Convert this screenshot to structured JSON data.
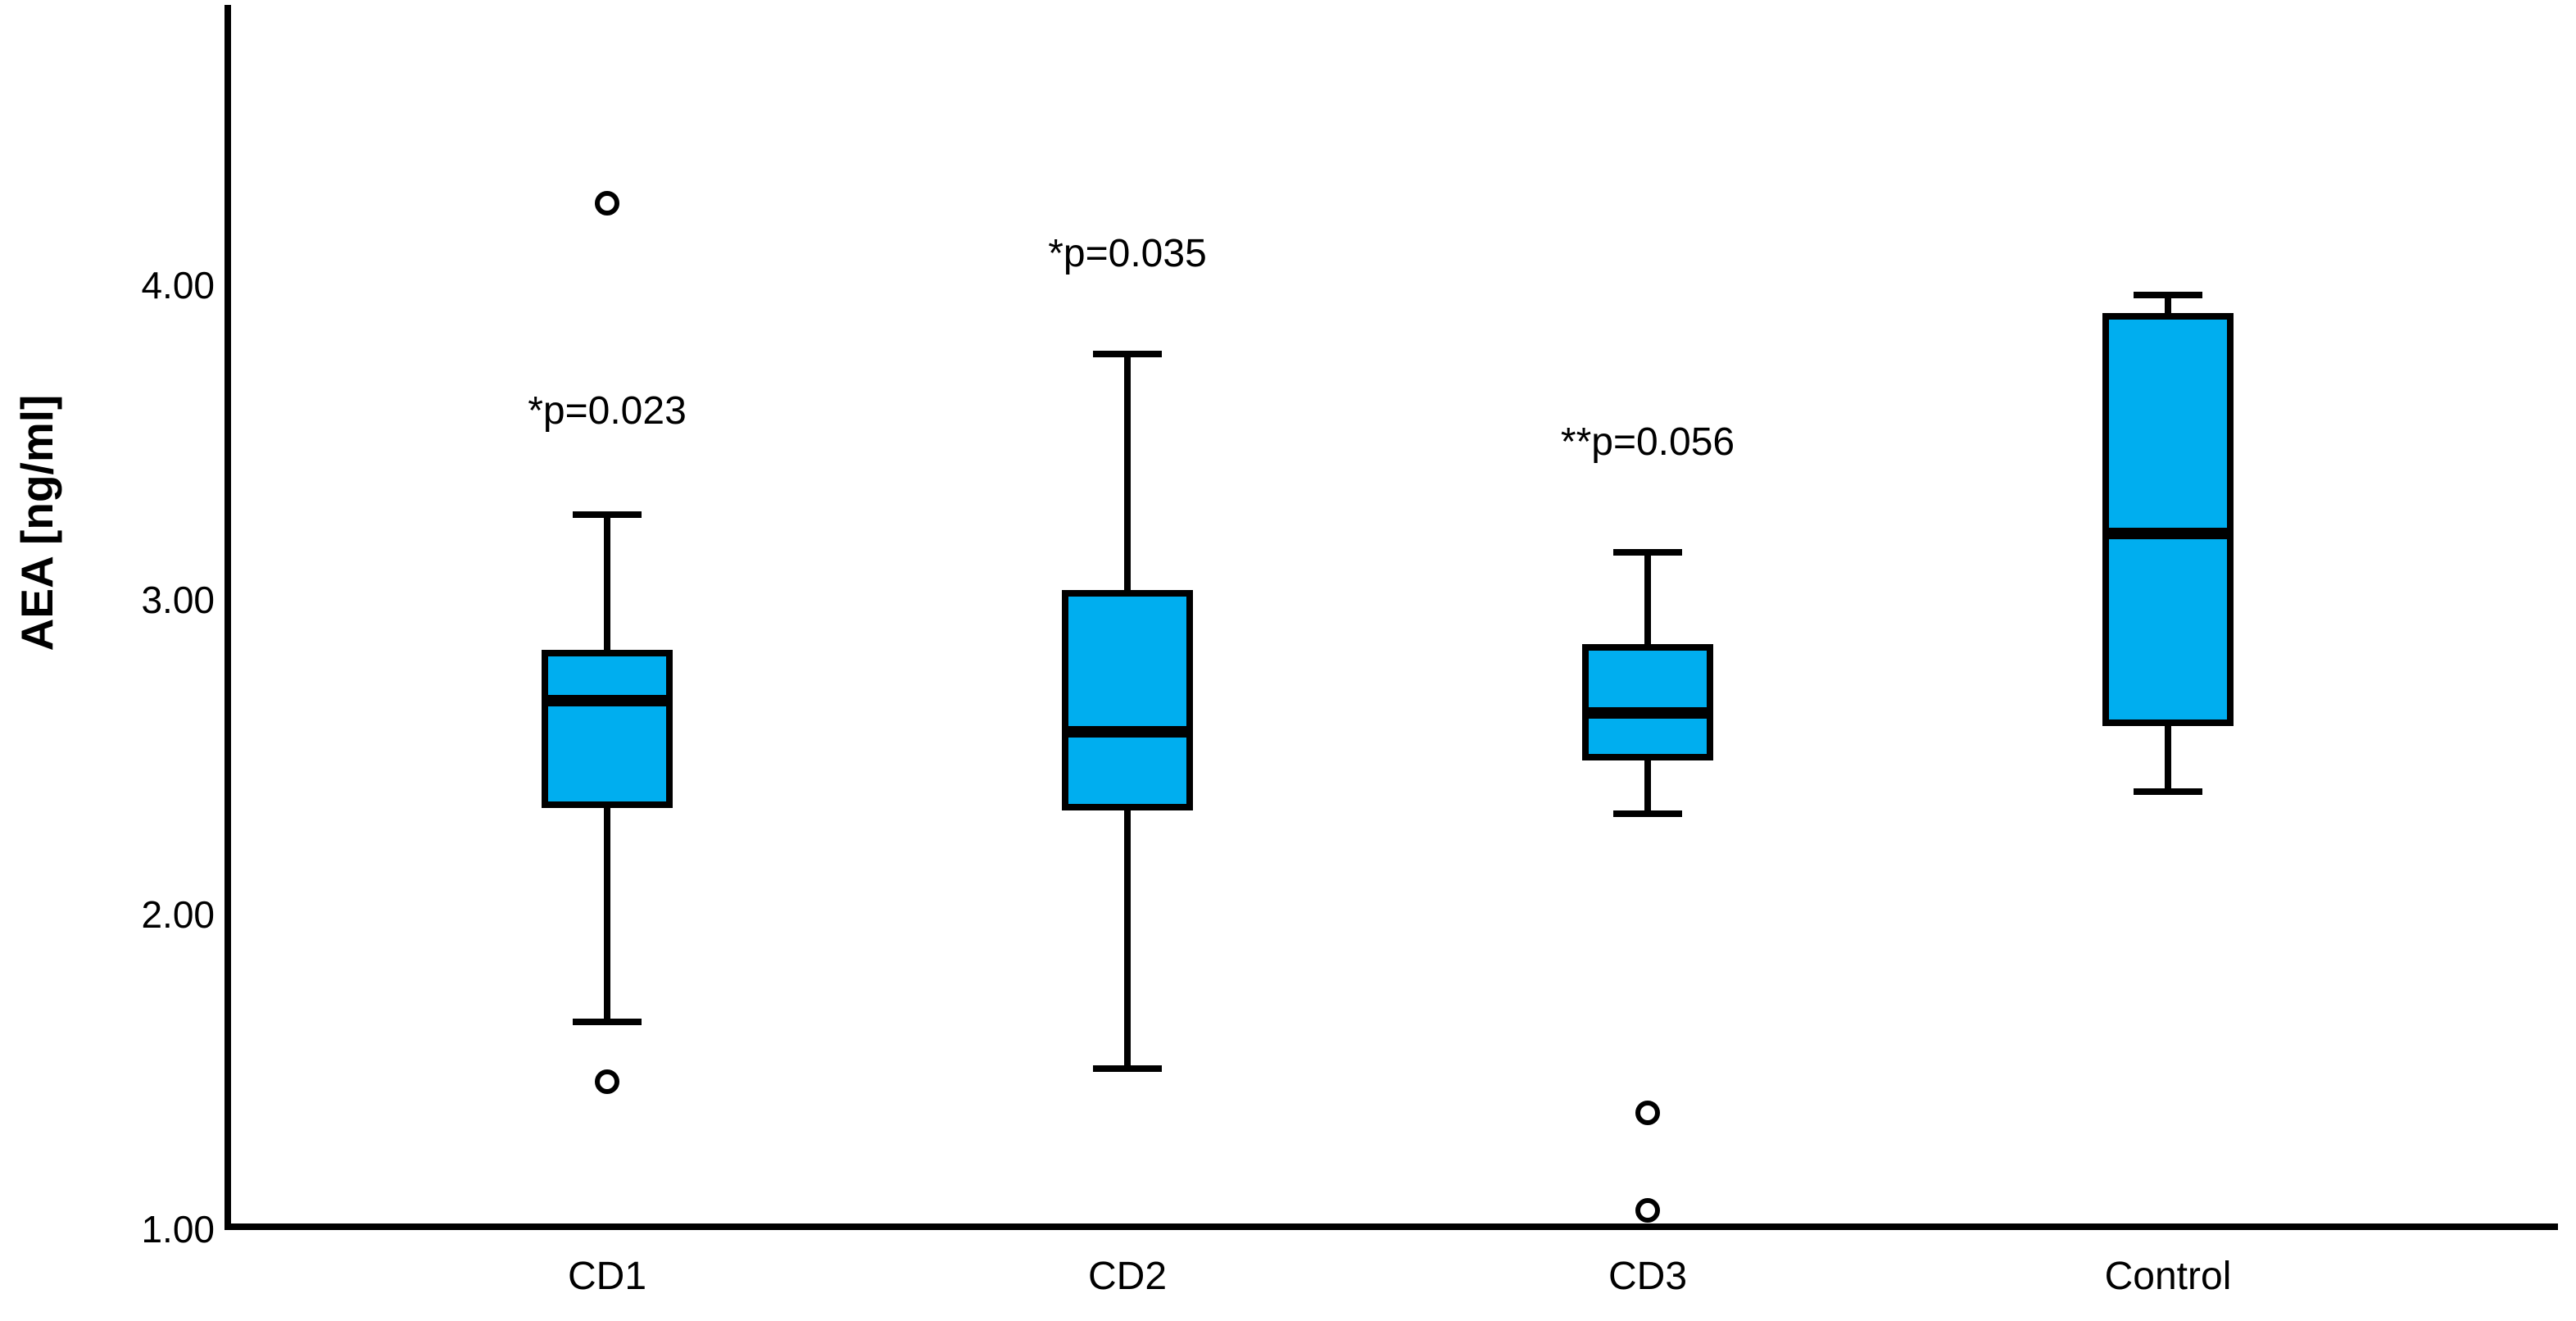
{
  "figure": {
    "background": "#FFFFFF",
    "y_axis_title": "AEA [ng/ml]"
  },
  "chart_data": {
    "type": "boxplot",
    "title": "",
    "xlabel": "",
    "ylabel": "AEA [ng/ml]",
    "ylim": [
      1.0,
      4.9
    ],
    "grid": false,
    "legend": "none",
    "yticks": [
      {
        "value": 4.0,
        "label": "4.00"
      },
      {
        "value": 3.0,
        "label": "3.00"
      },
      {
        "value": 2.0,
        "label": "2.00"
      },
      {
        "value": 1.0,
        "label": "1.00"
      }
    ],
    "categories": [
      "CD1",
      "CD2",
      "CD3",
      "Control"
    ],
    "boxes": [
      {
        "category": "CD1",
        "whisker_low": 1.66,
        "q1": 2.35,
        "median": 2.68,
        "q3": 2.83,
        "whisker_high": 3.27,
        "outliers": [
          4.26,
          1.47
        ],
        "annotation": "*p=0.023",
        "annotation_y": 3.6
      },
      {
        "category": "CD2",
        "whisker_low": 1.51,
        "q1": 2.34,
        "median": 2.58,
        "q3": 3.02,
        "whisker_high": 3.78,
        "outliers": [],
        "annotation": "*p=0.035",
        "annotation_y": 4.1
      },
      {
        "category": "CD3",
        "whisker_low": 2.32,
        "q1": 2.5,
        "median": 2.64,
        "q3": 2.85,
        "whisker_high": 3.15,
        "outliers": [
          1.37,
          1.06
        ],
        "annotation": "**p=0.056",
        "annotation_y": 3.5
      },
      {
        "category": "Control",
        "whisker_low": 2.39,
        "q1": 2.61,
        "median": 3.21,
        "q3": 3.9,
        "whisker_high": 3.97,
        "outliers": [],
        "annotation": "",
        "annotation_y": null
      }
    ],
    "colors": {
      "box_fill": "#00AEEF",
      "line": "#000000",
      "background": "#FFFFFF"
    }
  }
}
